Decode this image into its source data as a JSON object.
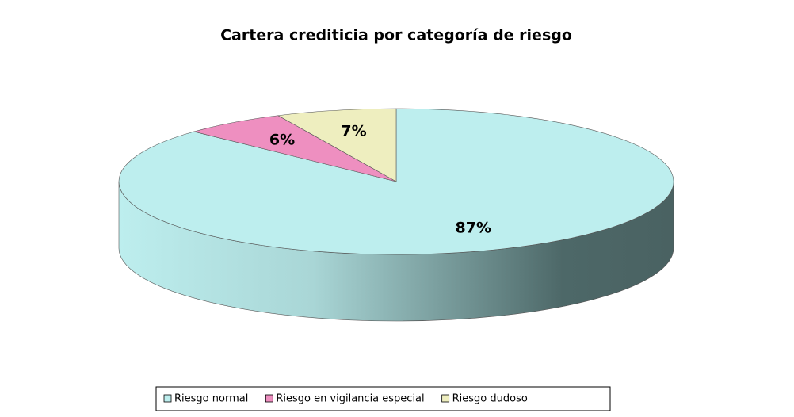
{
  "chart_data": {
    "type": "pie3d",
    "title": "Cartera crediticia por categoría de riesgo",
    "categories": [
      "Riesgo normal",
      "Riesgo en vigilancia especial",
      "Riesgo dudoso"
    ],
    "values": [
      87,
      6,
      7
    ],
    "value_labels": [
      "87%",
      "6%",
      "7%"
    ],
    "colors": [
      "#bdeeee",
      "#ee8fc0",
      "#eeeebf"
    ],
    "legend": "bottom"
  }
}
